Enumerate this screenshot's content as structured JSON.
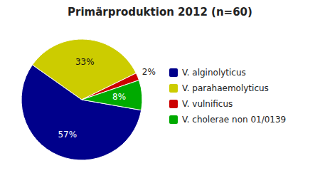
{
  "chart_data": {
    "type": "pie",
    "title": "Primärproduktion 2012 (n=60)",
    "categories": [
      "V. alginolyticus",
      "V. parahaemolyticus",
      "V. vulnificus",
      "V. cholerae non 01/0139"
    ],
    "values": [
      57,
      33,
      2,
      8
    ],
    "value_labels": [
      "57%",
      "33%",
      "2%",
      "8%"
    ],
    "colors": [
      "#00008B",
      "#CCCC00",
      "#CC0000",
      "#00AA00"
    ],
    "data_labels": true,
    "legend": "right"
  }
}
